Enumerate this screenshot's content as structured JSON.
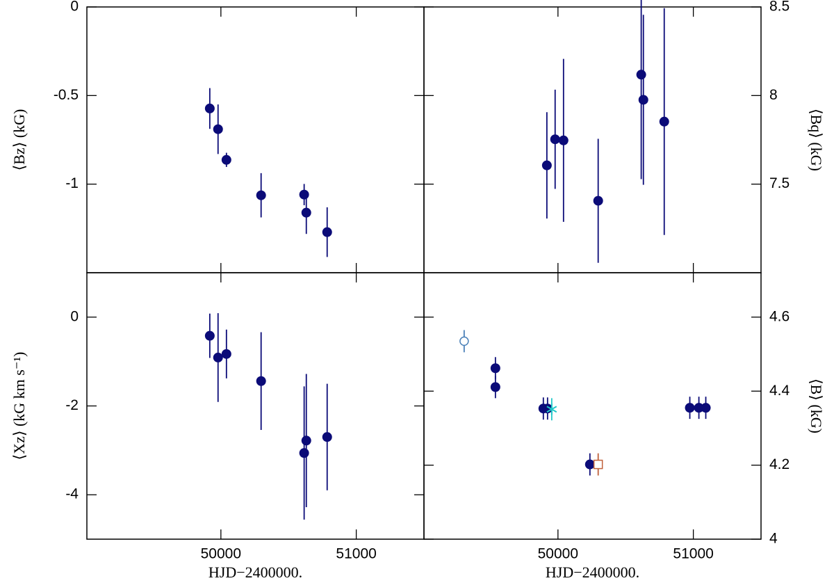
{
  "chart_data": [
    {
      "type": "scatter",
      "ylabel": "⟨Bz⟩ (kG)",
      "yaxis_side": "left",
      "xlim": [
        49010,
        51500
      ],
      "xticks": [
        50000,
        51000
      ],
      "ylim": [
        -1.5,
        0
      ],
      "yticks": [
        0,
        -0.5,
        -1
      ],
      "series": [
        {
          "color": "#0b0b78",
          "marker": "filled-circle",
          "x": [
            49918,
            49979,
            50041,
            50297,
            50615,
            50631,
            50785
          ],
          "values": [
            -0.573,
            -0.69,
            -0.863,
            -1.063,
            -1.059,
            -1.161,
            -1.271
          ],
          "errors": [
            0.115,
            0.14,
            0.04,
            0.125,
            0.06,
            0.12,
            0.14
          ]
        }
      ]
    },
    {
      "type": "scatter",
      "ylabel": "⟨Bq⟩ (kG)",
      "yaxis_side": "right",
      "xlim": [
        49010,
        51500
      ],
      "xticks": [
        50000,
        51000
      ],
      "ylim": [
        7,
        8.5
      ],
      "yticks": [
        8.5,
        8,
        7.5
      ],
      "series": [
        {
          "color": "#0b0b78",
          "marker": "filled-circle",
          "x": [
            49918,
            49979,
            50041,
            50297,
            50615,
            50631,
            50785
          ],
          "values": [
            7.606,
            7.753,
            7.747,
            7.406,
            8.118,
            7.976,
            7.853
          ],
          "errors": [
            0.3,
            0.28,
            0.46,
            0.35,
            0.59,
            0.48,
            0.64
          ]
        }
      ]
    },
    {
      "type": "scatter",
      "ylabel": "⟨Xz⟩ (kG km s⁻¹)",
      "yaxis_side": "left",
      "xlabel": "HJD−2400000.",
      "xlim": [
        49010,
        51500
      ],
      "xticks": [
        50000,
        51000
      ],
      "ylim": [
        -5,
        1
      ],
      "yticks": [
        0,
        -2,
        -4
      ],
      "series": [
        {
          "color": "#0b0b78",
          "marker": "filled-circle",
          "x": [
            49918,
            49979,
            50041,
            50297,
            50615,
            50631,
            50785
          ],
          "values": [
            -0.42,
            -0.91,
            -0.83,
            -1.44,
            -3.06,
            -2.78,
            -2.7
          ],
          "errors": [
            0.5,
            1.0,
            0.55,
            1.1,
            1.5,
            1.5,
            1.2
          ]
        }
      ]
    },
    {
      "type": "scatter",
      "ylabel": "⟨B⟩ (kG)",
      "yaxis_side": "right",
      "xlabel": "HJD−2400000.",
      "xlim": [
        49010,
        51500
      ],
      "xticks": [
        50000,
        51000
      ],
      "ylim": [
        4,
        4.72
      ],
      "yticks": [
        4.6,
        4.4,
        4.2,
        4
      ],
      "series": [
        {
          "color": "#0b0b78",
          "marker": "filled-circle",
          "x": [
            49538,
            49538,
            49892,
            49923,
            50236,
            50974,
            51041,
            51092
          ],
          "values": [
            4.462,
            4.411,
            4.353,
            4.353,
            4.202,
            4.355,
            4.355,
            4.355
          ],
          "errors": [
            0.03,
            0.03,
            0.03,
            0.03,
            0.03,
            0.03,
            0.03,
            0.03
          ]
        },
        {
          "color": "#4a80b8",
          "marker": "open-circle",
          "x": [
            49307
          ],
          "values": [
            4.535
          ],
          "errors": [
            0.03
          ]
        },
        {
          "color": "#20c8c8",
          "marker": "asterisk",
          "x": [
            49954
          ],
          "values": [
            4.351
          ],
          "errors": [
            0.03
          ]
        },
        {
          "color": "#c0603a",
          "marker": "open-square",
          "x": [
            50297
          ],
          "values": [
            4.202
          ],
          "errors": [
            0.03
          ]
        }
      ]
    }
  ]
}
